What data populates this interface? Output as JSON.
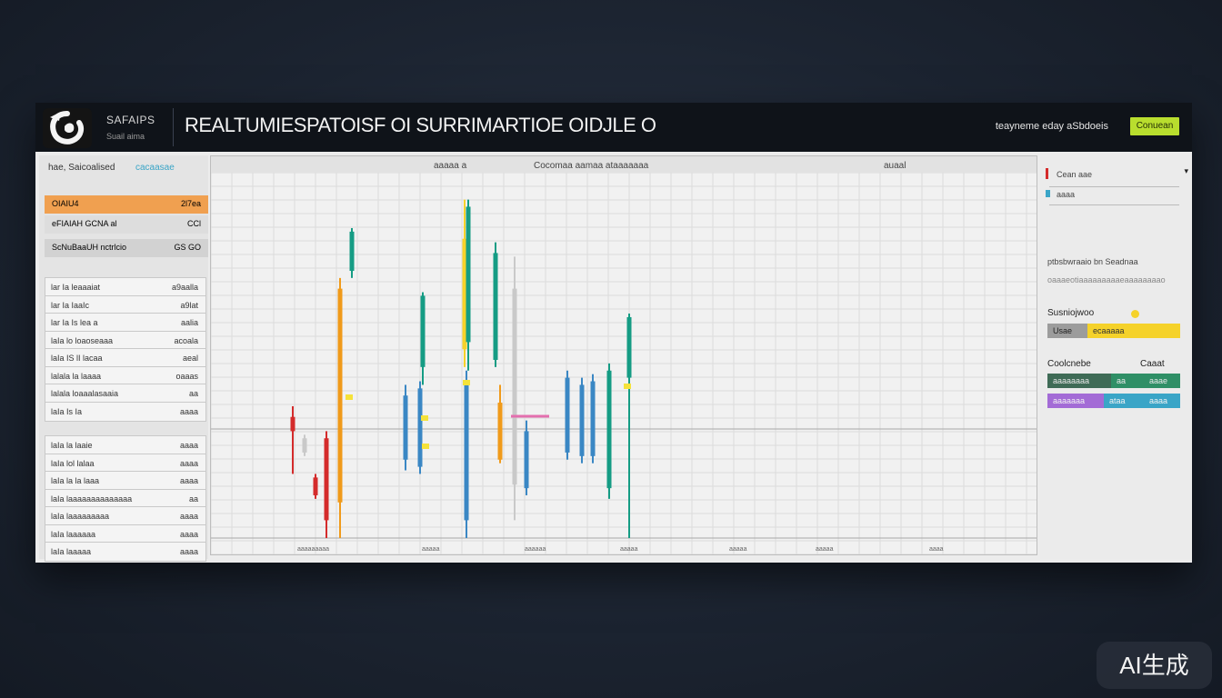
{
  "app": {
    "brand_name": "SAFAIPS",
    "brand_subtitle": "Suail aima",
    "title": "REALTUMIESPATOISF OI SURRIMARTIOE OIDJLE O",
    "top_right_label": "teayneme eday aSbdoeis",
    "connect_button": "Conuean"
  },
  "left_panel": {
    "header": "hae, Saicoalised",
    "header_tags": "cacaasae",
    "highlight_rows": [
      {
        "left": "OIAIU4",
        "right": "2l7ea",
        "color": "#f0a050"
      },
      {
        "left": "eFIAIAH GCNA al",
        "right": "CCl",
        "color": "#dddddd"
      },
      {
        "left": "ScNuBaaUH nctrlcio",
        "right": "GS GO",
        "color": "#d2d2d2"
      }
    ],
    "groups": [
      {
        "rows": [
          {
            "left": "lar Ia leaaaiat",
            "right": "a9aalla"
          },
          {
            "left": "lar Ia IaaIc",
            "right": "a9lat"
          },
          {
            "left": "lar Ia Is lea a",
            "right": "aalia"
          },
          {
            "left": "laIa lo loaoseaaa",
            "right": "acoala"
          },
          {
            "left": "laIa IS lI lacaa",
            "right": "aeal"
          },
          {
            "left": "lalala la laaaa",
            "right": "oaaas"
          },
          {
            "left": "lalala loaaalasaaia",
            "right": "aa"
          },
          {
            "left": "laIa Is Ia",
            "right": "aaaa"
          }
        ]
      },
      {
        "rows": [
          {
            "left": "laIa la laaie",
            "right": "aaaa"
          },
          {
            "left": "laIa lol lalaa",
            "right": "aaaa"
          },
          {
            "left": "laIa la la laaa",
            "right": "aaaa"
          },
          {
            "left": "laIa laaaaaaaaaaaaaa",
            "right": "aa"
          },
          {
            "left": "laIa laaaaaaaaa",
            "right": "aaaa"
          },
          {
            "left": "laIa laaaaaa",
            "right": "aaaa"
          },
          {
            "left": "laIa laaaaa",
            "right": "aaaa"
          }
        ]
      }
    ]
  },
  "right_panel": {
    "line1": "Cean aae",
    "line2": "aaaa",
    "info_line1": "ptbsbwraaio bn Seadnaa",
    "info_line2": "oaaaeotiaaaaaaaaaeaaaaaaaao",
    "section1_title": "Susniojwoo",
    "section1_bar": [
      "Usae",
      "ecaaaaa"
    ],
    "section2_title": "Coolcnebe",
    "section2_title_right": "Caaat",
    "section2_rows": [
      [
        "aaaaaaaa",
        "aa",
        "aaae"
      ],
      [
        "aaaaaaa",
        "ataa",
        "aaaa"
      ]
    ]
  },
  "chart_data": {
    "type": "candlestick",
    "header_labels": [
      "aaaaa a",
      "Cocomaa aamaa ataaaaaaa",
      "auaal"
    ],
    "bars": [
      {
        "color": "#d42b2b",
        "low": 0.18,
        "high": 0.37,
        "body_low": 0.3,
        "body_high": 0.34
      },
      {
        "color": "#c9c9c9",
        "low": 0.23,
        "high": 0.29,
        "body_low": 0.24,
        "body_high": 0.28
      },
      {
        "color": "#d42b2b",
        "low": 0.11,
        "high": 0.18,
        "body_low": 0.12,
        "body_high": 0.17
      },
      {
        "color": "#d42b2b",
        "low": 0.0,
        "high": 0.3,
        "body_low": 0.05,
        "body_high": 0.28
      },
      {
        "color": "#f09a1a",
        "low": 0.0,
        "high": 0.73,
        "body_low": 0.1,
        "body_high": 0.7
      },
      {
        "color": "#159c84",
        "low": 0.73,
        "high": 0.87,
        "body_low": 0.75,
        "body_high": 0.86
      },
      {
        "color": "#3a87c4",
        "low": 0.19,
        "high": 0.43,
        "body_low": 0.22,
        "body_high": 0.4
      },
      {
        "color": "#159c84",
        "low": 0.43,
        "high": 0.69,
        "body_low": 0.48,
        "body_high": 0.68
      },
      {
        "color": "#3a87c4",
        "low": 0.18,
        "high": 0.44,
        "body_low": 0.2,
        "body_high": 0.42
      },
      {
        "color": "#f5d22a",
        "low": 0.48,
        "high": 0.95,
        "body_low": 0.53,
        "body_high": 0.84
      },
      {
        "color": "#159c84",
        "low": 0.47,
        "high": 0.95,
        "body_low": 0.55,
        "body_high": 0.93
      },
      {
        "color": "#3a87c4",
        "low": 0.0,
        "high": 0.47,
        "body_low": 0.05,
        "body_high": 0.44
      },
      {
        "color": "#159c84",
        "low": 0.48,
        "high": 0.83,
        "body_low": 0.5,
        "body_high": 0.8
      },
      {
        "color": "#f09a1a",
        "low": 0.21,
        "high": 0.43,
        "body_low": 0.22,
        "body_high": 0.38
      },
      {
        "color": "#c9c9c9",
        "low": 0.05,
        "high": 0.79,
        "body_low": 0.15,
        "body_high": 0.7
      },
      {
        "color": "#3a87c4",
        "low": 0.12,
        "high": 0.33,
        "body_low": 0.14,
        "body_high": 0.3
      },
      {
        "color": "#3a87c4",
        "low": 0.22,
        "high": 0.47,
        "body_low": 0.24,
        "body_high": 0.45
      },
      {
        "color": "#3a87c4",
        "low": 0.21,
        "high": 0.45,
        "body_low": 0.23,
        "body_high": 0.43
      },
      {
        "color": "#3a87c4",
        "low": 0.21,
        "high": 0.46,
        "body_low": 0.23,
        "body_high": 0.44
      },
      {
        "color": "#159c84",
        "low": 0.11,
        "high": 0.49,
        "body_low": 0.14,
        "body_high": 0.47
      },
      {
        "color": "#159c84",
        "low": 0.0,
        "high": 0.63,
        "body_low": 0.45,
        "body_high": 0.62
      }
    ],
    "x_tick_labels": [
      "aaaaaaaaa",
      "aaaaa",
      "aaaaaa",
      "aaaaa",
      "aaaaa",
      "aaaaa",
      "aaaa"
    ],
    "grid": true
  }
}
